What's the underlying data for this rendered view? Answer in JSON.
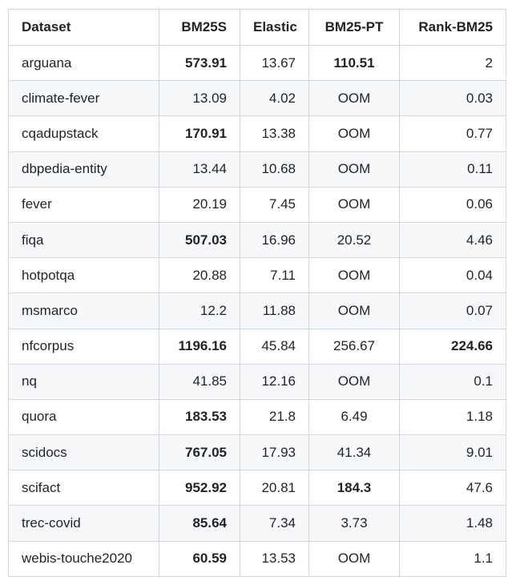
{
  "headers": [
    "Dataset",
    "BM25S",
    "Elastic",
    "BM25-PT",
    "Rank-BM25"
  ],
  "rows": [
    {
      "cells": [
        "arguana",
        "573.91",
        "13.67",
        "110.51",
        "2"
      ],
      "bold": [
        1,
        3
      ]
    },
    {
      "cells": [
        "climate-fever",
        "13.09",
        "4.02",
        "OOM",
        "0.03"
      ],
      "bold": []
    },
    {
      "cells": [
        "cqadupstack",
        "170.91",
        "13.38",
        "OOM",
        "0.77"
      ],
      "bold": [
        1
      ]
    },
    {
      "cells": [
        "dbpedia-entity",
        "13.44",
        "10.68",
        "OOM",
        "0.11"
      ],
      "bold": []
    },
    {
      "cells": [
        "fever",
        "20.19",
        "7.45",
        "OOM",
        "0.06"
      ],
      "bold": []
    },
    {
      "cells": [
        "fiqa",
        "507.03",
        "16.96",
        "20.52",
        "4.46"
      ],
      "bold": [
        1
      ]
    },
    {
      "cells": [
        "hotpotqa",
        "20.88",
        "7.11",
        "OOM",
        "0.04"
      ],
      "bold": []
    },
    {
      "cells": [
        "msmarco",
        "12.2",
        "11.88",
        "OOM",
        "0.07"
      ],
      "bold": []
    },
    {
      "cells": [
        "nfcorpus",
        "1196.16",
        "45.84",
        "256.67",
        "224.66"
      ],
      "bold": [
        1,
        4
      ]
    },
    {
      "cells": [
        "nq",
        "41.85",
        "12.16",
        "OOM",
        "0.1"
      ],
      "bold": []
    },
    {
      "cells": [
        "quora",
        "183.53",
        "21.8",
        "6.49",
        "1.18"
      ],
      "bold": [
        1
      ]
    },
    {
      "cells": [
        "scidocs",
        "767.05",
        "17.93",
        "41.34",
        "9.01"
      ],
      "bold": [
        1
      ]
    },
    {
      "cells": [
        "scifact",
        "952.92",
        "20.81",
        "184.3",
        "47.6"
      ],
      "bold": [
        1,
        3
      ]
    },
    {
      "cells": [
        "trec-covid",
        "85.64",
        "7.34",
        "3.73",
        "1.48"
      ],
      "bold": [
        1
      ]
    },
    {
      "cells": [
        "webis-touche2020",
        "60.59",
        "13.53",
        "OOM",
        "1.1"
      ],
      "bold": [
        1
      ]
    }
  ]
}
